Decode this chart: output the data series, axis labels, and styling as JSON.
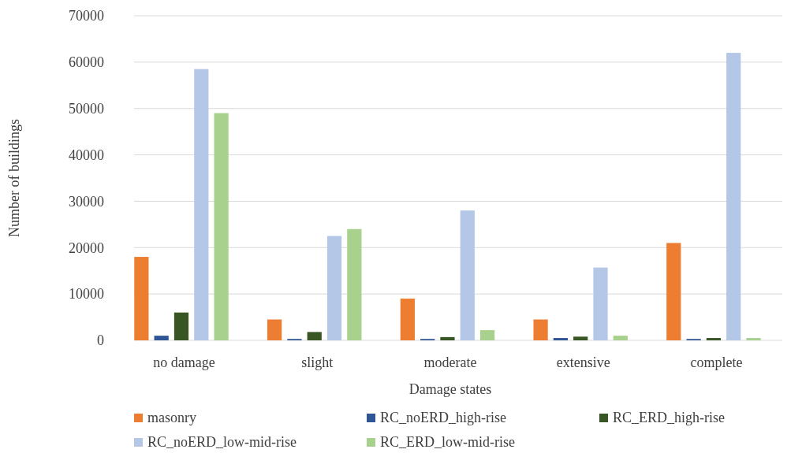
{
  "chart_data": {
    "type": "bar",
    "xlabel": "Damage states",
    "ylabel": "Number of buildings",
    "categories": [
      "no damage",
      "slight",
      "moderate",
      "extensive",
      "complete"
    ],
    "series": [
      {
        "name": "masonry",
        "color": "#ed7d31",
        "values": [
          18000,
          4500,
          9000,
          4500,
          21000
        ]
      },
      {
        "name": "RC_noERD_high-rise",
        "color": "#2f5597",
        "values": [
          1000,
          300,
          300,
          500,
          300
        ]
      },
      {
        "name": "RC_ERD_high-rise",
        "color": "#375623",
        "values": [
          6000,
          1800,
          700,
          800,
          500
        ]
      },
      {
        "name": "RC_noERD_low-mid-rise",
        "color": "#b4c7e7",
        "values": [
          58500,
          22500,
          28000,
          15700,
          62000
        ]
      },
      {
        "name": "RC_ERD_low-mid-rise",
        "color": "#a9d18e",
        "values": [
          49000,
          24000,
          2200,
          1000,
          500
        ]
      }
    ],
    "ylim": [
      0,
      70000
    ],
    "yticks": [
      0,
      10000,
      20000,
      30000,
      40000,
      50000,
      60000,
      70000
    ],
    "grid": "y",
    "legend": "bottom"
  }
}
